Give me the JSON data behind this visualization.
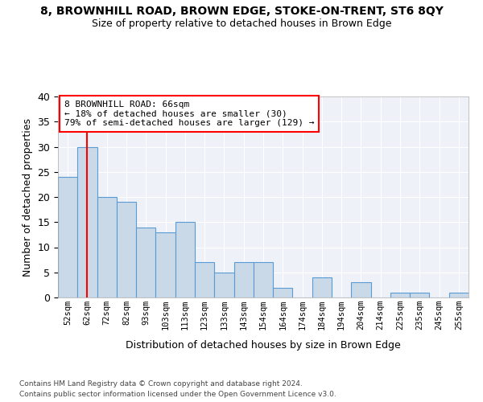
{
  "title1": "8, BROWNHILL ROAD, BROWN EDGE, STOKE-ON-TRENT, ST6 8QY",
  "title2": "Size of property relative to detached houses in Brown Edge",
  "xlabel": "Distribution of detached houses by size in Brown Edge",
  "ylabel": "Number of detached properties",
  "bins": [
    "52sqm",
    "62sqm",
    "72sqm",
    "82sqm",
    "93sqm",
    "103sqm",
    "113sqm",
    "123sqm",
    "133sqm",
    "143sqm",
    "154sqm",
    "164sqm",
    "174sqm",
    "184sqm",
    "194sqm",
    "204sqm",
    "214sqm",
    "225sqm",
    "235sqm",
    "245sqm",
    "255sqm"
  ],
  "values": [
    24,
    30,
    20,
    19,
    14,
    13,
    15,
    7,
    5,
    7,
    7,
    2,
    0,
    4,
    0,
    3,
    0,
    1,
    1,
    0,
    1
  ],
  "bar_color": "#c9d9e8",
  "bar_edge_color": "#5b9bd5",
  "red_line_x": 1,
  "annotation_text": "8 BROWNHILL ROAD: 66sqm\n← 18% of detached houses are smaller (30)\n79% of semi-detached houses are larger (129) →",
  "annotation_box_color": "white",
  "annotation_box_edge": "red",
  "ylim": [
    0,
    40
  ],
  "yticks": [
    0,
    5,
    10,
    15,
    20,
    25,
    30,
    35,
    40
  ],
  "footer1": "Contains HM Land Registry data © Crown copyright and database right 2024.",
  "footer2": "Contains public sector information licensed under the Open Government Licence v3.0.",
  "bg_color": "#eef2f8",
  "grid_color": "#ffffff",
  "title1_fontsize": 10,
  "title2_fontsize": 9
}
